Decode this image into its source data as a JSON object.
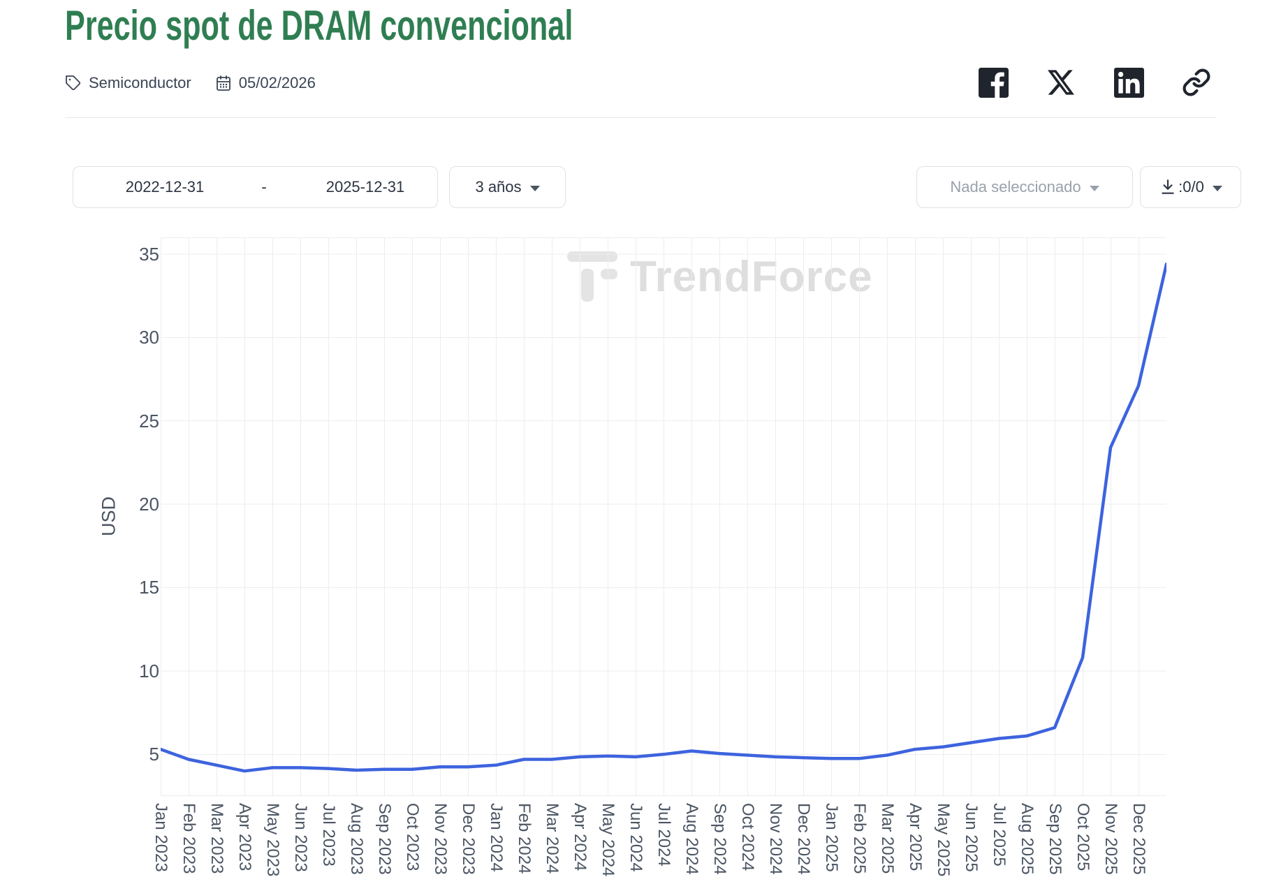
{
  "header": {
    "title": "Precio spot de DRAM convencional",
    "tag": "Semiconductor",
    "date": "05/02/2026"
  },
  "social_icons": [
    "facebook",
    "x-twitter",
    "linkedin",
    "copy-link"
  ],
  "controls": {
    "date_from": "2022-12-31",
    "date_separator": "-",
    "date_to": "2025-12-31",
    "range_label": "3 años",
    "series_placeholder": "Nada seleccionado",
    "download_label": ":0/0"
  },
  "watermark": {
    "text": "TrendForce"
  },
  "colors": {
    "title_green": "#2f7e52",
    "line_blue": "#3d63de",
    "grid": "#ededed",
    "axis_text": "#4b5563"
  },
  "chart_data": {
    "type": "line",
    "title": "Precio spot de DRAM convencional",
    "xlabel": "",
    "ylabel": "USD",
    "unit": "USD",
    "grid": true,
    "legend": false,
    "line_color": "#3d63de",
    "yticks": [
      5,
      10,
      15,
      20,
      25,
      30,
      35
    ],
    "ylim": [
      2.5,
      36.0
    ],
    "categories": [
      "Jan 2023",
      "Feb 2023",
      "Mar 2023",
      "Apr 2023",
      "May 2023",
      "Jun 2023",
      "Jul 2023",
      "Aug 2023",
      "Sep 2023",
      "Oct 2023",
      "Nov 2023",
      "Dec 2023",
      "Jan 2024",
      "Feb 2024",
      "Mar 2024",
      "Apr 2024",
      "May 2024",
      "Jun 2024",
      "Jul 2024",
      "Aug 2024",
      "Sep 2024",
      "Oct 2024",
      "Nov 2024",
      "Dec 2024",
      "Jan 2025",
      "Feb 2025",
      "Mar 2025",
      "Apr 2025",
      "May 2025",
      "Jun 2025",
      "Jul 2025",
      "Aug 2025",
      "Sep 2025",
      "Oct 2025",
      "Nov 2025",
      "Dec 2025"
    ],
    "values": [
      5.3,
      4.7,
      4.35,
      4.0,
      4.2,
      4.2,
      4.15,
      4.05,
      4.1,
      4.1,
      4.25,
      4.25,
      4.35,
      4.7,
      4.7,
      4.85,
      4.9,
      4.85,
      5.0,
      5.2,
      5.05,
      4.95,
      4.85,
      4.8,
      4.75,
      4.75,
      4.95,
      5.3,
      5.45,
      5.7,
      5.95,
      6.1,
      6.6,
      10.8,
      23.4,
      27.1,
      34.4
    ],
    "values_note": "37 points: the final point has no month label and extends past Dec 2025 to the chart's right edge"
  }
}
